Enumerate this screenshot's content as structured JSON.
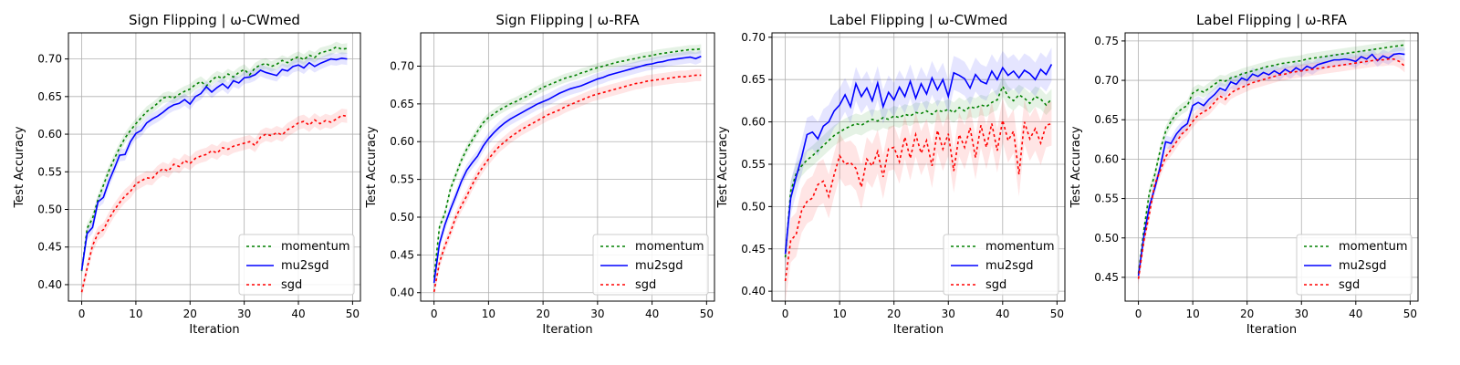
{
  "figure": {
    "background": "#ffffff"
  },
  "series_styles": {
    "momentum": {
      "label": "momentum",
      "color": "#008000",
      "dash": "3,3"
    },
    "mu2sgd": {
      "label": "mu2sgd",
      "color": "#0000ff",
      "dash": ""
    },
    "sgd": {
      "label": "sgd",
      "color": "#ff0000",
      "dash": "3,3"
    }
  },
  "chart_data": [
    {
      "type": "line",
      "title": "Sign Flipping | ω-CWmed",
      "xlabel": "Iteration",
      "ylabel": "Test Accuracy",
      "xlim": [
        -2.45,
        51.45
      ],
      "ylim": [
        0.3781,
        0.7347
      ],
      "xticks": [
        0,
        10,
        20,
        30,
        40,
        50
      ],
      "yticks": [
        0.4,
        0.45,
        0.5,
        0.55,
        0.6,
        0.65,
        0.7
      ],
      "ytick_labels": [
        "0.40",
        "0.45",
        "0.50",
        "0.55",
        "0.60",
        "0.65",
        "0.70"
      ],
      "grid": true,
      "legend": "lower-right",
      "series": [
        {
          "name": "momentum",
          "values": [
            0.418,
            0.475,
            0.488,
            0.513,
            0.532,
            0.551,
            0.567,
            0.582,
            0.595,
            0.605,
            0.614,
            0.622,
            0.63,
            0.635,
            0.641,
            0.648,
            0.65,
            0.648,
            0.653,
            0.657,
            0.66,
            0.666,
            0.67,
            0.664,
            0.672,
            0.677,
            0.674,
            0.68,
            0.676,
            0.682,
            0.686,
            0.679,
            0.688,
            0.692,
            0.694,
            0.69,
            0.693,
            0.698,
            0.695,
            0.7,
            0.703,
            0.699,
            0.705,
            0.702,
            0.708,
            0.71,
            0.712,
            0.716,
            0.713,
            0.714
          ],
          "band": 0.007
        },
        {
          "name": "mu2sgd",
          "values": [
            0.419,
            0.468,
            0.476,
            0.51,
            0.516,
            0.537,
            0.554,
            0.572,
            0.573,
            0.59,
            0.601,
            0.605,
            0.615,
            0.62,
            0.624,
            0.629,
            0.635,
            0.639,
            0.641,
            0.646,
            0.64,
            0.65,
            0.654,
            0.663,
            0.656,
            0.662,
            0.667,
            0.661,
            0.671,
            0.668,
            0.675,
            0.676,
            0.679,
            0.685,
            0.682,
            0.68,
            0.678,
            0.686,
            0.684,
            0.69,
            0.692,
            0.688,
            0.695,
            0.69,
            0.694,
            0.697,
            0.7,
            0.699,
            0.701,
            0.7
          ],
          "band": 0.008
        },
        {
          "name": "sgd",
          "values": [
            0.39,
            0.422,
            0.452,
            0.468,
            0.473,
            0.487,
            0.499,
            0.509,
            0.518,
            0.524,
            0.534,
            0.538,
            0.542,
            0.541,
            0.549,
            0.554,
            0.551,
            0.56,
            0.557,
            0.565,
            0.561,
            0.568,
            0.571,
            0.573,
            0.578,
            0.575,
            0.582,
            0.58,
            0.584,
            0.586,
            0.588,
            0.59,
            0.585,
            0.596,
            0.6,
            0.598,
            0.602,
            0.599,
            0.606,
            0.61,
            0.615,
            0.617,
            0.612,
            0.619,
            0.614,
            0.618,
            0.616,
            0.62,
            0.625,
            0.624
          ],
          "band": 0.009
        }
      ]
    },
    {
      "type": "line",
      "title": "Sign Flipping | ω-RFA",
      "xlabel": "Iteration",
      "ylabel": "Test Accuracy",
      "xlim": [
        -2.45,
        51.45
      ],
      "ylim": [
        0.3888,
        0.7441
      ],
      "xticks": [
        0,
        10,
        20,
        30,
        40,
        50
      ],
      "yticks": [
        0.4,
        0.45,
        0.5,
        0.55,
        0.6,
        0.65,
        0.7
      ],
      "ytick_labels": [
        "0.40",
        "0.45",
        "0.50",
        "0.55",
        "0.60",
        "0.65",
        "0.70"
      ],
      "grid": true,
      "legend": "lower-right",
      "series": [
        {
          "name": "momentum",
          "values": [
            0.42,
            0.487,
            0.505,
            0.537,
            0.556,
            0.575,
            0.59,
            0.602,
            0.614,
            0.625,
            0.632,
            0.637,
            0.642,
            0.646,
            0.65,
            0.653,
            0.657,
            0.66,
            0.664,
            0.668,
            0.672,
            0.675,
            0.678,
            0.681,
            0.684,
            0.686,
            0.688,
            0.691,
            0.693,
            0.696,
            0.698,
            0.7,
            0.702,
            0.704,
            0.706,
            0.707,
            0.709,
            0.71,
            0.712,
            0.713,
            0.714,
            0.716,
            0.717,
            0.718,
            0.719,
            0.72,
            0.721,
            0.722,
            0.722,
            0.723
          ],
          "band": 0.006
        },
        {
          "name": "mu2sgd",
          "values": [
            0.413,
            0.465,
            0.49,
            0.51,
            0.528,
            0.547,
            0.562,
            0.572,
            0.581,
            0.594,
            0.604,
            0.612,
            0.619,
            0.625,
            0.63,
            0.634,
            0.638,
            0.642,
            0.646,
            0.65,
            0.653,
            0.656,
            0.66,
            0.664,
            0.667,
            0.67,
            0.672,
            0.674,
            0.677,
            0.68,
            0.683,
            0.685,
            0.688,
            0.69,
            0.692,
            0.694,
            0.696,
            0.698,
            0.7,
            0.702,
            0.703,
            0.705,
            0.706,
            0.708,
            0.709,
            0.71,
            0.711,
            0.712,
            0.71,
            0.713
          ],
          "band": 0.008
        },
        {
          "name": "sgd",
          "values": [
            0.401,
            0.44,
            0.462,
            0.48,
            0.5,
            0.515,
            0.528,
            0.543,
            0.556,
            0.567,
            0.577,
            0.586,
            0.594,
            0.6,
            0.606,
            0.611,
            0.616,
            0.62,
            0.624,
            0.628,
            0.632,
            0.636,
            0.639,
            0.642,
            0.646,
            0.649,
            0.652,
            0.655,
            0.658,
            0.661,
            0.663,
            0.665,
            0.667,
            0.669,
            0.671,
            0.673,
            0.675,
            0.677,
            0.678,
            0.68,
            0.681,
            0.682,
            0.683,
            0.684,
            0.685,
            0.686,
            0.686,
            0.687,
            0.688,
            0.688
          ],
          "band": 0.008
        }
      ]
    },
    {
      "type": "line",
      "title": "Label Flipping | ω-CWmed",
      "xlabel": "Iteration",
      "ylabel": "Test Accuracy",
      "xlim": [
        -2.45,
        51.45
      ],
      "ylim": [
        0.3883,
        0.7052
      ],
      "xticks": [
        0,
        10,
        20,
        30,
        40,
        50
      ],
      "yticks": [
        0.4,
        0.45,
        0.5,
        0.55,
        0.6,
        0.65,
        0.7
      ],
      "ytick_labels": [
        "0.40",
        "0.45",
        "0.50",
        "0.55",
        "0.60",
        "0.65",
        "0.70"
      ],
      "grid": true,
      "legend": "lower-right",
      "series": [
        {
          "name": "momentum",
          "values": [
            0.44,
            0.518,
            0.539,
            0.548,
            0.555,
            0.56,
            0.566,
            0.572,
            0.578,
            0.584,
            0.588,
            0.592,
            0.595,
            0.598,
            0.596,
            0.6,
            0.603,
            0.601,
            0.605,
            0.603,
            0.607,
            0.605,
            0.609,
            0.607,
            0.611,
            0.61,
            0.613,
            0.609,
            0.614,
            0.612,
            0.615,
            0.611,
            0.617,
            0.613,
            0.618,
            0.616,
            0.62,
            0.618,
            0.623,
            0.626,
            0.642,
            0.63,
            0.625,
            0.632,
            0.628,
            0.622,
            0.63,
            0.627,
            0.62,
            0.627
          ],
          "band": 0.012
        },
        {
          "name": "mu2sgd",
          "values": [
            0.444,
            0.51,
            0.535,
            0.558,
            0.585,
            0.588,
            0.58,
            0.595,
            0.6,
            0.613,
            0.62,
            0.632,
            0.618,
            0.645,
            0.63,
            0.64,
            0.625,
            0.646,
            0.618,
            0.635,
            0.626,
            0.641,
            0.63,
            0.648,
            0.628,
            0.645,
            0.633,
            0.652,
            0.638,
            0.65,
            0.63,
            0.658,
            0.655,
            0.651,
            0.64,
            0.656,
            0.648,
            0.645,
            0.66,
            0.65,
            0.664,
            0.655,
            0.66,
            0.652,
            0.661,
            0.657,
            0.65,
            0.662,
            0.656,
            0.668
          ],
          "band": 0.02
        },
        {
          "name": "sgd",
          "values": [
            0.412,
            0.46,
            0.467,
            0.495,
            0.506,
            0.51,
            0.526,
            0.53,
            0.512,
            0.538,
            0.56,
            0.55,
            0.552,
            0.545,
            0.523,
            0.556,
            0.548,
            0.565,
            0.535,
            0.568,
            0.57,
            0.553,
            0.582,
            0.557,
            0.585,
            0.563,
            0.578,
            0.548,
            0.59,
            0.568,
            0.586,
            0.542,
            0.585,
            0.57,
            0.593,
            0.558,
            0.596,
            0.57,
            0.598,
            0.566,
            0.602,
            0.578,
            0.589,
            0.538,
            0.6,
            0.58,
            0.592,
            0.575,
            0.596,
            0.598
          ],
          "band": 0.026
        }
      ]
    },
    {
      "type": "line",
      "title": "Label Flipping | ω-RFA",
      "xlabel": "Iteration",
      "ylabel": "Test Accuracy",
      "xlim": [
        -2.45,
        51.45
      ],
      "ylim": [
        0.4198,
        0.7603
      ],
      "xticks": [
        0,
        10,
        20,
        30,
        40,
        50
      ],
      "yticks": [
        0.45,
        0.5,
        0.55,
        0.6,
        0.65,
        0.7,
        0.75
      ],
      "ytick_labels": [
        "0.45",
        "0.50",
        "0.55",
        "0.60",
        "0.65",
        "0.70",
        "0.75"
      ],
      "grid": true,
      "legend": "lower-right",
      "series": [
        {
          "name": "momentum",
          "values": [
            0.455,
            0.51,
            0.557,
            0.58,
            0.611,
            0.635,
            0.648,
            0.658,
            0.664,
            0.668,
            0.684,
            0.688,
            0.685,
            0.69,
            0.695,
            0.7,
            0.699,
            0.703,
            0.705,
            0.708,
            0.71,
            0.712,
            0.714,
            0.716,
            0.718,
            0.719,
            0.721,
            0.722,
            0.723,
            0.724,
            0.725,
            0.727,
            0.728,
            0.729,
            0.73,
            0.731,
            0.732,
            0.733,
            0.734,
            0.735,
            0.736,
            0.737,
            0.738,
            0.739,
            0.74,
            0.741,
            0.742,
            0.743,
            0.744,
            0.745
          ],
          "band": 0.007
        },
        {
          "name": "mu2sgd",
          "values": [
            0.452,
            0.502,
            0.54,
            0.563,
            0.59,
            0.622,
            0.62,
            0.632,
            0.64,
            0.645,
            0.668,
            0.672,
            0.668,
            0.676,
            0.682,
            0.69,
            0.687,
            0.698,
            0.695,
            0.703,
            0.7,
            0.708,
            0.705,
            0.71,
            0.707,
            0.712,
            0.708,
            0.714,
            0.71,
            0.716,
            0.712,
            0.718,
            0.715,
            0.72,
            0.722,
            0.724,
            0.726,
            0.726,
            0.727,
            0.726,
            0.724,
            0.73,
            0.727,
            0.733,
            0.725,
            0.731,
            0.728,
            0.733,
            0.734,
            0.733
          ],
          "band": 0.008
        },
        {
          "name": "sgd",
          "values": [
            0.448,
            0.496,
            0.53,
            0.568,
            0.585,
            0.603,
            0.612,
            0.622,
            0.632,
            0.638,
            0.648,
            0.656,
            0.66,
            0.664,
            0.672,
            0.68,
            0.676,
            0.684,
            0.688,
            0.691,
            0.694,
            0.697,
            0.699,
            0.701,
            0.703,
            0.705,
            0.707,
            0.708,
            0.71,
            0.711,
            0.712,
            0.713,
            0.714,
            0.715,
            0.716,
            0.717,
            0.718,
            0.719,
            0.72,
            0.721,
            0.722,
            0.723,
            0.724,
            0.725,
            0.726,
            0.726,
            0.727,
            0.727,
            0.724,
            0.718
          ],
          "band": 0.008
        }
      ]
    }
  ]
}
